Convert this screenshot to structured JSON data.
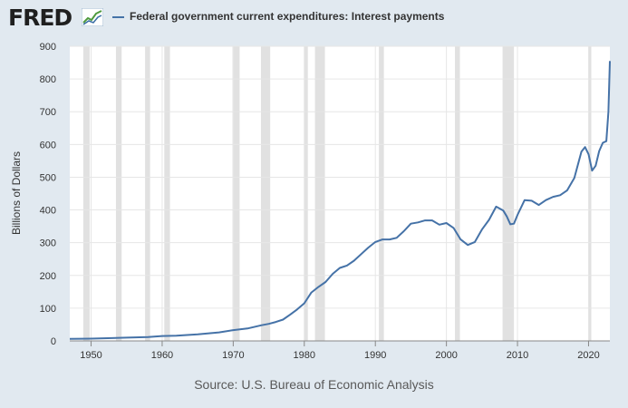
{
  "header": {
    "logo_text": "FRED",
    "logo_icon": "fred-graph-icon",
    "legend_label": "Federal government current expenditures: Interest payments",
    "series_color": "#4572a7"
  },
  "source": "Source: U.S. Bureau of Economic Analysis",
  "chart_data": {
    "type": "line",
    "title": "Federal government current expenditures: Interest payments",
    "xlabel": "",
    "ylabel": "Billions of Dollars",
    "xlim": [
      1947,
      2023
    ],
    "ylim": [
      0,
      900
    ],
    "yticks": [
      0,
      100,
      200,
      300,
      400,
      500,
      600,
      700,
      800,
      900
    ],
    "xticks": [
      1950,
      1960,
      1970,
      1980,
      1990,
      2000,
      2010,
      2020
    ],
    "grid": true,
    "legend": "top-left",
    "recessions": [
      [
        1948.9,
        1949.8
      ],
      [
        1953.5,
        1954.3
      ],
      [
        1957.6,
        1958.3
      ],
      [
        1960.3,
        1961.1
      ],
      [
        1969.9,
        1970.9
      ],
      [
        1973.9,
        1975.2
      ],
      [
        1980.0,
        1980.5
      ],
      [
        1981.5,
        1982.9
      ],
      [
        1990.5,
        1991.2
      ],
      [
        2001.2,
        2001.9
      ],
      [
        2007.9,
        2009.5
      ],
      [
        2020.0,
        2020.3
      ]
    ],
    "series": [
      {
        "name": "Federal government current expenditures: Interest payments",
        "x": [
          1947,
          1950,
          1955,
          1958,
          1960,
          1962,
          1965,
          1968,
          1970,
          1972,
          1974,
          1975,
          1976,
          1977,
          1978,
          1979,
          1980,
          1981,
          1982,
          1983,
          1984,
          1985,
          1986,
          1987,
          1988,
          1989,
          1990,
          1991,
          1992,
          1993,
          1994,
          1995,
          1996,
          1997,
          1998,
          1999,
          2000,
          2001,
          2002,
          2003,
          2004,
          2005,
          2006,
          2007,
          2008,
          2008.5,
          2009,
          2009.5,
          2010,
          2011,
          2012,
          2013,
          2014,
          2015,
          2016,
          2017,
          2018,
          2019,
          2019.5,
          2020,
          2020.5,
          2021,
          2021.5,
          2022,
          2022.5,
          2022.8,
          2023
        ],
        "values": [
          6,
          7,
          10,
          12,
          15,
          16,
          20,
          26,
          33,
          38,
          48,
          52,
          58,
          65,
          80,
          96,
          115,
          148,
          165,
          180,
          205,
          223,
          230,
          245,
          265,
          285,
          302,
          310,
          310,
          315,
          335,
          358,
          362,
          368,
          368,
          355,
          360,
          345,
          310,
          293,
          302,
          340,
          370,
          410,
          398,
          380,
          356,
          358,
          385,
          430,
          428,
          415,
          430,
          440,
          445,
          460,
          498,
          578,
          592,
          570,
          520,
          535,
          580,
          605,
          610,
          700,
          855
        ]
      }
    ]
  }
}
